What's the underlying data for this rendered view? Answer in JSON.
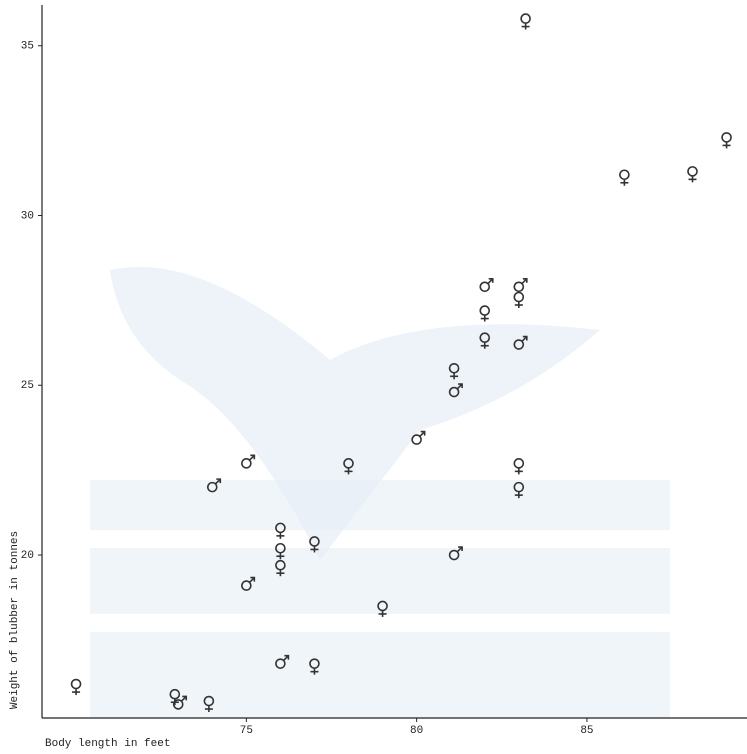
{
  "chart_data": {
    "type": "scatter",
    "x_label": "Body length in feet",
    "y_label": "Weight of blubber in tonnes",
    "xlim": [
      69,
      89.7
    ],
    "ylim": [
      15.2,
      36.2
    ],
    "xticks": [
      75,
      80,
      85
    ],
    "yticks": [
      20,
      25,
      30,
      35
    ],
    "grid": false,
    "series": [
      {
        "marker": "female",
        "color": "#333333",
        "x": [
          70.0,
          72.9,
          73.9,
          76.0,
          76.0,
          76.0,
          77.0,
          77.0,
          78.0,
          79.0,
          81.1,
          82.0,
          82.0,
          83.0,
          83.0,
          83.0,
          83.2,
          86.1,
          88.1,
          89.1
        ],
        "values": [
          16.2,
          15.9,
          15.7,
          20.8,
          20.2,
          19.7,
          20.4,
          16.8,
          22.7,
          18.5,
          25.5,
          27.2,
          26.4,
          27.6,
          22.7,
          22.0,
          35.8,
          31.2,
          31.3,
          32.3
        ]
      },
      {
        "marker": "male",
        "color": "#333333",
        "x": [
          73.0,
          74.0,
          75.0,
          75.0,
          76.0,
          80.0,
          81.1,
          81.1,
          82.0,
          83.0,
          83.0
        ],
        "values": [
          15.6,
          22.0,
          22.7,
          19.1,
          16.8,
          23.4,
          20.0,
          24.8,
          27.9,
          27.9,
          26.2
        ]
      }
    ]
  }
}
